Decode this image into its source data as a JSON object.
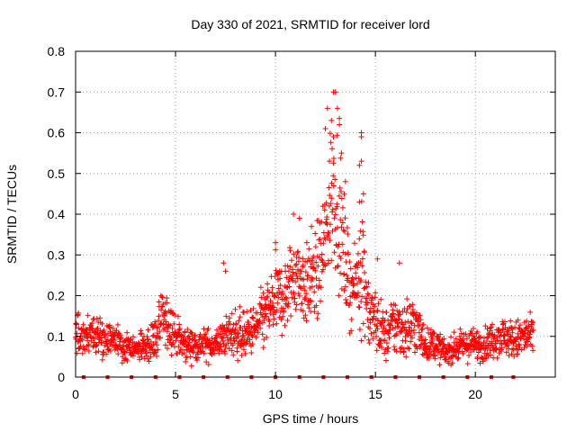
{
  "chart_data": {
    "type": "scatter",
    "title": "Day 330 of 2021, SRMTID for receiver lord",
    "xlabel": "GPS time / hours",
    "ylabel": "SRMTID / TECUs",
    "xlim": [
      0,
      24
    ],
    "ylim": [
      0,
      0.8
    ],
    "x_ticks": [
      0,
      5,
      10,
      15,
      20
    ],
    "y_ticks": [
      0,
      0.1,
      0.2,
      0.3,
      0.4,
      0.5,
      0.6,
      0.7,
      0.8
    ],
    "x_tick_labels": [
      "0",
      "5",
      "10",
      "15",
      "20"
    ],
    "y_tick_labels": [
      "0",
      "0.1",
      "0.2",
      "0.3",
      "0.4",
      "0.5",
      "0.6",
      "0.7",
      "0.8"
    ],
    "grid": true,
    "point_color": "#ff0000",
    "marker": "plus",
    "trend": [
      [
        0.0,
        0.1,
        0.03
      ],
      [
        0.5,
        0.1,
        0.03
      ],
      [
        1.0,
        0.1,
        0.03
      ],
      [
        1.5,
        0.09,
        0.025
      ],
      [
        2.0,
        0.09,
        0.025
      ],
      [
        2.5,
        0.07,
        0.025
      ],
      [
        3.0,
        0.07,
        0.02
      ],
      [
        3.5,
        0.07,
        0.02
      ],
      [
        4.0,
        0.1,
        0.04
      ],
      [
        4.4,
        0.14,
        0.05
      ],
      [
        4.8,
        0.12,
        0.04
      ],
      [
        5.2,
        0.09,
        0.03
      ],
      [
        5.6,
        0.08,
        0.025
      ],
      [
        6.0,
        0.08,
        0.025
      ],
      [
        6.5,
        0.08,
        0.025
      ],
      [
        7.0,
        0.08,
        0.025
      ],
      [
        7.5,
        0.1,
        0.03
      ],
      [
        8.0,
        0.11,
        0.04
      ],
      [
        8.5,
        0.1,
        0.035
      ],
      [
        9.0,
        0.12,
        0.04
      ],
      [
        9.5,
        0.15,
        0.05
      ],
      [
        10.0,
        0.19,
        0.06
      ],
      [
        10.5,
        0.2,
        0.06
      ],
      [
        11.0,
        0.26,
        0.07
      ],
      [
        11.5,
        0.22,
        0.06
      ],
      [
        12.0,
        0.24,
        0.07
      ],
      [
        12.5,
        0.33,
        0.1
      ],
      [
        12.8,
        0.45,
        0.12
      ],
      [
        13.0,
        0.47,
        0.13
      ],
      [
        13.3,
        0.35,
        0.1
      ],
      [
        13.7,
        0.22,
        0.06
      ],
      [
        14.0,
        0.22,
        0.05
      ],
      [
        14.3,
        0.3,
        0.12
      ],
      [
        14.7,
        0.15,
        0.05
      ],
      [
        15.0,
        0.14,
        0.05
      ],
      [
        15.5,
        0.1,
        0.04
      ],
      [
        16.0,
        0.13,
        0.05
      ],
      [
        16.5,
        0.12,
        0.05
      ],
      [
        17.0,
        0.13,
        0.05
      ],
      [
        17.5,
        0.08,
        0.025
      ],
      [
        18.0,
        0.08,
        0.025
      ],
      [
        18.5,
        0.06,
        0.02
      ],
      [
        19.0,
        0.07,
        0.02
      ],
      [
        19.5,
        0.08,
        0.025
      ],
      [
        20.0,
        0.08,
        0.025
      ],
      [
        20.5,
        0.08,
        0.025
      ],
      [
        21.0,
        0.1,
        0.03
      ],
      [
        21.5,
        0.1,
        0.03
      ],
      [
        22.0,
        0.09,
        0.03
      ],
      [
        22.5,
        0.1,
        0.035
      ],
      [
        22.9,
        0.1,
        0.03
      ]
    ],
    "highlights": [
      [
        12.9,
        0.7
      ],
      [
        13.0,
        0.7
      ],
      [
        12.6,
        0.66
      ],
      [
        12.8,
        0.63
      ],
      [
        13.1,
        0.66
      ],
      [
        13.2,
        0.62
      ],
      [
        12.9,
        0.59
      ],
      [
        13.3,
        0.55
      ],
      [
        12.5,
        0.61
      ],
      [
        14.3,
        0.6
      ],
      [
        14.3,
        0.59
      ],
      [
        14.3,
        0.53
      ],
      [
        14.2,
        0.52
      ],
      [
        14.4,
        0.45
      ],
      [
        14.2,
        0.43
      ],
      [
        13.5,
        0.48
      ],
      [
        12.7,
        0.53
      ],
      [
        10.9,
        0.4
      ],
      [
        11.2,
        0.39
      ],
      [
        10.0,
        0.33
      ],
      [
        11.8,
        0.37
      ],
      [
        7.4,
        0.28
      ],
      [
        7.5,
        0.26
      ],
      [
        15.1,
        0.29
      ],
      [
        16.2,
        0.28
      ]
    ],
    "zero_points_x": [
      0.4,
      1.6,
      2.8,
      4.0,
      5.2,
      6.4,
      7.6,
      8.8,
      10.0,
      11.2,
      12.4,
      13.6,
      14.8,
      16.0,
      17.2,
      18.4,
      19.6,
      20.8,
      21.9
    ]
  }
}
